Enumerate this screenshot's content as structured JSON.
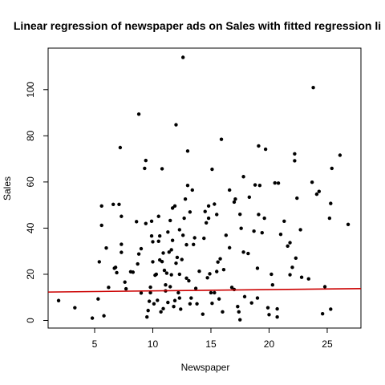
{
  "chart_data": {
    "type": "scatter",
    "title": "Linear regression of newspaper ads on Sales with fitted regression li",
    "xlabel": "Newspaper",
    "ylabel": "Sales",
    "xlim": [
      1.0,
      27.9
    ],
    "ylim": [
      -3.3,
      118.0
    ],
    "x_ticks": [
      5,
      10,
      15,
      20,
      25
    ],
    "y_ticks": [
      0,
      20,
      40,
      60,
      80,
      100
    ],
    "grid": false,
    "legend": "none",
    "point_color": "#000000",
    "line_color": "#cc0000",
    "regression_line": {
      "x": [
        1.0,
        27.9
      ],
      "y": [
        12.3,
        13.8
      ]
    },
    "points": [
      [
        1.9,
        8.6
      ],
      [
        3.3,
        5.5
      ],
      [
        4.8,
        1.0
      ],
      [
        5.3,
        9.3
      ],
      [
        5.4,
        25.4
      ],
      [
        5.6,
        49.6
      ],
      [
        5.6,
        41.2
      ],
      [
        5.8,
        2.0
      ],
      [
        6.0,
        31.4
      ],
      [
        6.2,
        14.3
      ],
      [
        6.6,
        50.3
      ],
      [
        6.7,
        22.6
      ],
      [
        6.8,
        23.0
      ],
      [
        6.9,
        20.7
      ],
      [
        7.1,
        50.3
      ],
      [
        7.2,
        74.9
      ],
      [
        7.3,
        45.1
      ],
      [
        7.3,
        29.5
      ],
      [
        7.3,
        33.0
      ],
      [
        7.6,
        16.6
      ],
      [
        7.7,
        13.7
      ],
      [
        8.1,
        21.1
      ],
      [
        8.3,
        20.9
      ],
      [
        8.6,
        42.8
      ],
      [
        8.7,
        24.5
      ],
      [
        8.8,
        28.8
      ],
      [
        8.8,
        89.4
      ],
      [
        9.0,
        31.1
      ],
      [
        9.0,
        11.9
      ],
      [
        9.3,
        65.9
      ],
      [
        9.4,
        69.3
      ],
      [
        9.4,
        42.0
      ],
      [
        9.5,
        1.5
      ],
      [
        9.6,
        4.3
      ],
      [
        9.7,
        8.3
      ],
      [
        9.8,
        14.4
      ],
      [
        9.8,
        12.0
      ],
      [
        9.9,
        36.6
      ],
      [
        9.9,
        43.0
      ],
      [
        10.0,
        25.4
      ],
      [
        10.0,
        34.1
      ],
      [
        10.1,
        7.2
      ],
      [
        10.2,
        19.6
      ],
      [
        10.3,
        20.0
      ],
      [
        10.4,
        8.7
      ],
      [
        10.5,
        45.1
      ],
      [
        10.5,
        34.3
      ],
      [
        10.6,
        26.2
      ],
      [
        10.6,
        36.6
      ],
      [
        10.7,
        3.7
      ],
      [
        10.8,
        65.7
      ],
      [
        10.8,
        25.5
      ],
      [
        10.9,
        29.2
      ],
      [
        10.9,
        5.1
      ],
      [
        11.0,
        21.7
      ],
      [
        11.1,
        15.4
      ],
      [
        11.1,
        12.8
      ],
      [
        11.2,
        20.5
      ],
      [
        11.3,
        38.3
      ],
      [
        11.3,
        7.8
      ],
      [
        11.4,
        29.6
      ],
      [
        11.5,
        43.3
      ],
      [
        11.5,
        14.6
      ],
      [
        11.6,
        30.6
      ],
      [
        11.6,
        19.8
      ],
      [
        11.7,
        48.7
      ],
      [
        11.7,
        34.7
      ],
      [
        11.8,
        6.0
      ],
      [
        11.9,
        49.6
      ],
      [
        11.9,
        8.6
      ],
      [
        12.0,
        24.8
      ],
      [
        12.0,
        84.8
      ],
      [
        12.1,
        27.3
      ],
      [
        12.2,
        12.0
      ],
      [
        12.3,
        20.0
      ],
      [
        12.3,
        39.3
      ],
      [
        12.3,
        9.7
      ],
      [
        12.4,
        4.9
      ],
      [
        12.5,
        26.4
      ],
      [
        12.6,
        36.9
      ],
      [
        12.6,
        114.0
      ],
      [
        12.7,
        44.3
      ],
      [
        12.8,
        52.6
      ],
      [
        12.9,
        32.8
      ],
      [
        12.9,
        18.3
      ],
      [
        13.0,
        73.4
      ],
      [
        13.0,
        58.5
      ],
      [
        13.1,
        17.2
      ],
      [
        13.2,
        7.2
      ],
      [
        13.2,
        47.0
      ],
      [
        13.3,
        9.7
      ],
      [
        13.4,
        56.5
      ],
      [
        13.5,
        32.9
      ],
      [
        13.6,
        35.8
      ],
      [
        13.7,
        13.9
      ],
      [
        13.8,
        7.2
      ],
      [
        14.0,
        21.3
      ],
      [
        14.3,
        2.7
      ],
      [
        14.4,
        35.6
      ],
      [
        14.5,
        47.2
      ],
      [
        14.6,
        42.3
      ],
      [
        14.7,
        18.5
      ],
      [
        14.8,
        49.6
      ],
      [
        14.8,
        44.3
      ],
      [
        14.9,
        20.2
      ],
      [
        15.0,
        12.0
      ],
      [
        15.1,
        7.4
      ],
      [
        15.1,
        65.5
      ],
      [
        15.3,
        50.4
      ],
      [
        15.3,
        12.0
      ],
      [
        15.5,
        21.2
      ],
      [
        15.5,
        45.9
      ],
      [
        15.6,
        25.3
      ],
      [
        15.7,
        9.3
      ],
      [
        15.8,
        26.7
      ],
      [
        15.9,
        78.5
      ],
      [
        16.0,
        3.7
      ],
      [
        16.1,
        22.0
      ],
      [
        16.3,
        36.9
      ],
      [
        16.6,
        56.5
      ],
      [
        16.6,
        31.5
      ],
      [
        16.8,
        14.3
      ],
      [
        17.0,
        51.3
      ],
      [
        17.0,
        13.4
      ],
      [
        17.1,
        52.6
      ],
      [
        17.3,
        6.0
      ],
      [
        17.4,
        3.7
      ],
      [
        17.5,
        0.3
      ],
      [
        17.5,
        46.0
      ],
      [
        17.6,
        39.9
      ],
      [
        17.8,
        29.6
      ],
      [
        17.8,
        62.3
      ],
      [
        17.9,
        10.3
      ],
      [
        18.2,
        29.0
      ],
      [
        18.3,
        53.4
      ],
      [
        18.5,
        7.6
      ],
      [
        18.7,
        38.7
      ],
      [
        18.8,
        58.7
      ],
      [
        19.0,
        22.6
      ],
      [
        19.0,
        9.7
      ],
      [
        19.1,
        75.6
      ],
      [
        19.1,
        45.9
      ],
      [
        19.2,
        58.5
      ],
      [
        19.4,
        38.0
      ],
      [
        19.6,
        44.3
      ],
      [
        19.7,
        74.2
      ],
      [
        19.9,
        5.5
      ],
      [
        20.0,
        2.5
      ],
      [
        20.2,
        20.0
      ],
      [
        20.3,
        15.4
      ],
      [
        20.5,
        59.6
      ],
      [
        20.7,
        1.5
      ],
      [
        20.7,
        5.0
      ],
      [
        20.8,
        59.5
      ],
      [
        21.0,
        37.3
      ],
      [
        21.3,
        43.0
      ],
      [
        21.6,
        32.2
      ],
      [
        21.8,
        33.7
      ],
      [
        21.8,
        19.8
      ],
      [
        22.0,
        23.0
      ],
      [
        22.2,
        69.2
      ],
      [
        22.2,
        72.2
      ],
      [
        22.3,
        27.0
      ],
      [
        22.4,
        53.0
      ],
      [
        22.7,
        39.3
      ],
      [
        22.8,
        18.7
      ],
      [
        23.4,
        18.0
      ],
      [
        23.7,
        59.9
      ],
      [
        23.8,
        100.9
      ],
      [
        24.1,
        54.7
      ],
      [
        24.3,
        55.9
      ],
      [
        24.6,
        2.9
      ],
      [
        24.8,
        14.6
      ],
      [
        25.2,
        44.3
      ],
      [
        25.3,
        50.7
      ],
      [
        25.3,
        4.9
      ],
      [
        25.4,
        65.9
      ],
      [
        26.1,
        71.6
      ],
      [
        26.8,
        41.6
      ]
    ]
  }
}
